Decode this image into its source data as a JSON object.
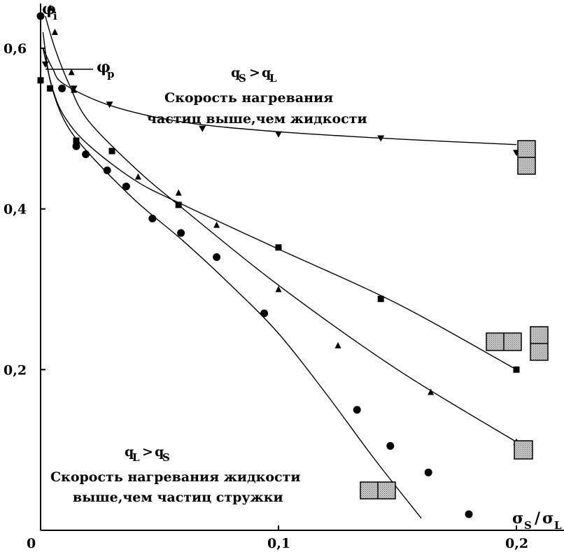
{
  "chart_data": {
    "type": "scatter",
    "xlabel": "σ_S / σ_L",
    "ylabel": "φ_i",
    "xlim": [
      0,
      0.22
    ],
    "ylim": [
      0,
      0.66
    ],
    "x_ticks": [
      {
        "value": 0,
        "label": "0"
      },
      {
        "value": 0.1,
        "label": "0,1"
      },
      {
        "value": 0.2,
        "label": "0,2"
      }
    ],
    "y_ticks": [
      {
        "value": 0.2,
        "label": "0,2"
      },
      {
        "value": 0.4,
        "label": "0,4"
      },
      {
        "value": 0.6,
        "label": "0,6"
      }
    ],
    "series": [
      {
        "marker": "triangle-down",
        "points": [
          [
            0.002,
            0.58
          ],
          [
            0.014,
            0.55
          ],
          [
            0.029,
            0.53
          ],
          [
            0.068,
            0.5
          ],
          [
            0.1,
            0.493
          ],
          [
            0.143,
            0.488
          ],
          [
            0.2,
            0.47
          ]
        ],
        "fit": [
          [
            0.001,
            0.6
          ],
          [
            0.005,
            0.575
          ],
          [
            0.01,
            0.555
          ],
          [
            0.03,
            0.528
          ],
          [
            0.06,
            0.508
          ],
          [
            0.1,
            0.496
          ],
          [
            0.15,
            0.487
          ],
          [
            0.2,
            0.48
          ]
        ]
      },
      {
        "marker": "square",
        "points": [
          [
            0.0,
            0.56
          ],
          [
            0.004,
            0.55
          ],
          [
            0.015,
            0.485
          ],
          [
            0.03,
            0.472
          ],
          [
            0.058,
            0.405
          ],
          [
            0.1,
            0.352
          ],
          [
            0.143,
            0.288
          ],
          [
            0.2,
            0.2
          ]
        ],
        "fit": [
          [
            0.001,
            0.6
          ],
          [
            0.005,
            0.55
          ],
          [
            0.01,
            0.515
          ],
          [
            0.02,
            0.48
          ],
          [
            0.04,
            0.435
          ],
          [
            0.06,
            0.405
          ],
          [
            0.1,
            0.35
          ],
          [
            0.15,
            0.282
          ],
          [
            0.2,
            0.2
          ]
        ]
      },
      {
        "marker": "triangle-up",
        "points": [
          [
            0.004,
            0.65
          ],
          [
            0.006,
            0.62
          ],
          [
            0.013,
            0.57
          ],
          [
            0.014,
            0.548
          ],
          [
            0.041,
            0.44
          ],
          [
            0.058,
            0.42
          ],
          [
            0.074,
            0.38
          ],
          [
            0.1,
            0.3
          ],
          [
            0.125,
            0.23
          ],
          [
            0.164,
            0.172
          ],
          [
            0.2,
            0.11
          ]
        ],
        "fit": [
          [
            0.002,
            0.64
          ],
          [
            0.006,
            0.6
          ],
          [
            0.012,
            0.555
          ],
          [
            0.02,
            0.51
          ],
          [
            0.04,
            0.45
          ],
          [
            0.06,
            0.4
          ],
          [
            0.1,
            0.305
          ],
          [
            0.15,
            0.2
          ],
          [
            0.2,
            0.11
          ]
        ]
      },
      {
        "marker": "circle",
        "points": [
          [
            0.0,
            0.64
          ],
          [
            0.009,
            0.55
          ],
          [
            0.015,
            0.478
          ],
          [
            0.019,
            0.468
          ],
          [
            0.028,
            0.448
          ],
          [
            0.036,
            0.428
          ],
          [
            0.047,
            0.388
          ],
          [
            0.059,
            0.37
          ],
          [
            0.074,
            0.34
          ],
          [
            0.094,
            0.27
          ],
          [
            0.133,
            0.15
          ],
          [
            0.147,
            0.105
          ],
          [
            0.163,
            0.072
          ],
          [
            0.18,
            0.02
          ]
        ],
        "fit": [
          [
            0.001,
            0.62
          ],
          [
            0.004,
            0.56
          ],
          [
            0.01,
            0.51
          ],
          [
            0.02,
            0.47
          ],
          [
            0.04,
            0.41
          ],
          [
            0.06,
            0.36
          ],
          [
            0.08,
            0.305
          ],
          [
            0.1,
            0.245
          ],
          [
            0.12,
            0.17
          ],
          [
            0.14,
            0.09
          ],
          [
            0.16,
            0.015
          ]
        ]
      }
    ],
    "annotations": {
      "phi_p": "φ_p",
      "top_condition": "q_S > q_L",
      "top_line1": "Скорость нагревания",
      "top_line2": "частиц выше,чем жидкости",
      "bottom_condition": "q_L > q_S",
      "bottom_line1": "Скорость нагревания жидкости",
      "bottom_line2": "выше,чем частиц стружки"
    },
    "grid": false,
    "legend": "none"
  }
}
